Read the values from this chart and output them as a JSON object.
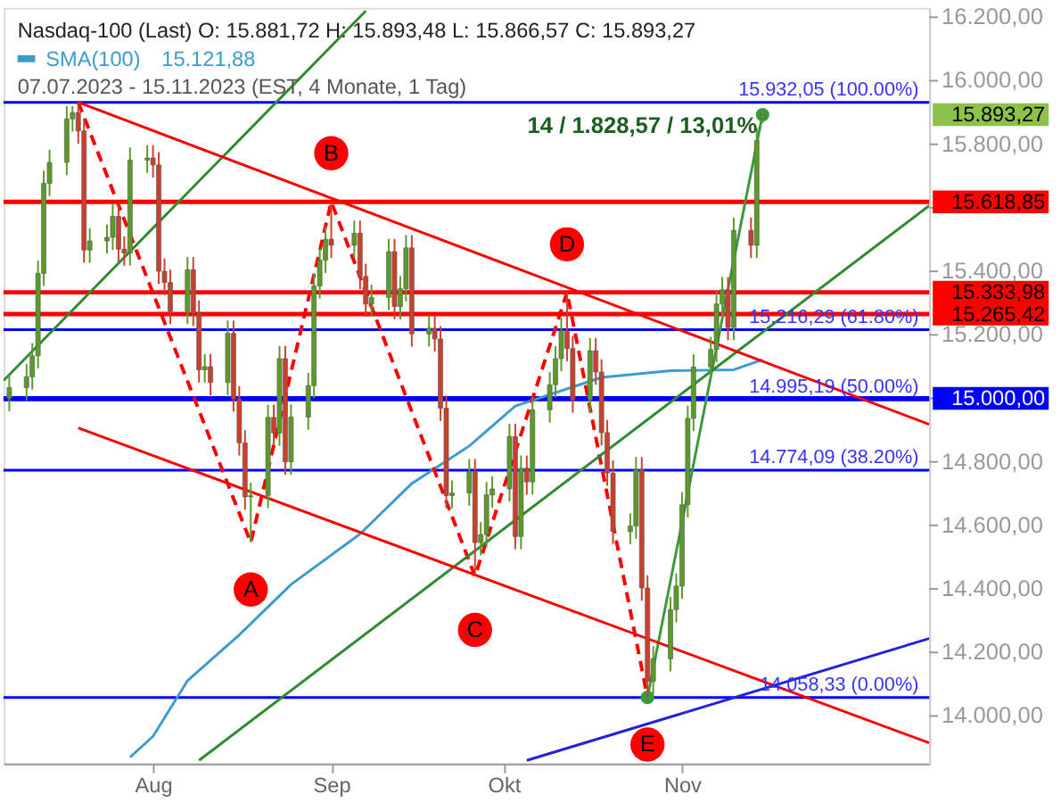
{
  "chart_data": {
    "type": "candlestick",
    "title": "Nasdaq-100 (Last)  O: 15.881,72  H: 15.893,48  L: 15.866,57  C: 15.893,27",
    "subtitle": "07.07.2023 - 15.11.2023  (EST, 4 Monate, 1 Tag)",
    "x": [
      "2023-07-07",
      "2023-07-10",
      "2023-07-11",
      "2023-07-12",
      "2023-07-13",
      "2023-07-14",
      "2023-07-17",
      "2023-07-18",
      "2023-07-19",
      "2023-07-20",
      "2023-07-21",
      "2023-07-24",
      "2023-07-25",
      "2023-07-26",
      "2023-07-27",
      "2023-07-28",
      "2023-07-31",
      "2023-08-01",
      "2023-08-02",
      "2023-08-03",
      "2023-08-04",
      "2023-08-07",
      "2023-08-08",
      "2023-08-09",
      "2023-08-10",
      "2023-08-11",
      "2023-08-14",
      "2023-08-15",
      "2023-08-16",
      "2023-08-17",
      "2023-08-18",
      "2023-08-21",
      "2023-08-22",
      "2023-08-23",
      "2023-08-24",
      "2023-08-25",
      "2023-08-28",
      "2023-08-29",
      "2023-08-30",
      "2023-08-31",
      "2023-09-01",
      "2023-09-05",
      "2023-09-06",
      "2023-09-07",
      "2023-09-08",
      "2023-09-11",
      "2023-09-12",
      "2023-09-13",
      "2023-09-14",
      "2023-09-15",
      "2023-09-18",
      "2023-09-19",
      "2023-09-20",
      "2023-09-21",
      "2023-09-22",
      "2023-09-25",
      "2023-09-26",
      "2023-09-27",
      "2023-09-28",
      "2023-09-29",
      "2023-10-02",
      "2023-10-03",
      "2023-10-04",
      "2023-10-05",
      "2023-10-06",
      "2023-10-09",
      "2023-10-10",
      "2023-10-11",
      "2023-10-12",
      "2023-10-13",
      "2023-10-16",
      "2023-10-17",
      "2023-10-18",
      "2023-10-19",
      "2023-10-20",
      "2023-10-23",
      "2023-10-24",
      "2023-10-25",
      "2023-10-26",
      "2023-10-27",
      "2023-10-30",
      "2023-10-31",
      "2023-11-01",
      "2023-11-02",
      "2023-11-03",
      "2023-11-06",
      "2023-11-07",
      "2023-11-08",
      "2023-11-09",
      "2023-11-10",
      "2023-11-13",
      "2023-11-14",
      "2023-11-15"
    ],
    "ohlc": [
      [
        15000,
        15074,
        14960,
        15034
      ],
      [
        15034,
        15108,
        14994,
        15068
      ],
      [
        15068,
        15174,
        15028,
        15134
      ],
      [
        15134,
        15434,
        15094,
        15394
      ],
      [
        15394,
        15717,
        15354,
        15677
      ],
      [
        15677,
        15783,
        15637,
        15743
      ],
      [
        15743,
        15920,
        15703,
        15880
      ],
      [
        15880,
        15920,
        15840,
        15900
      ],
      [
        15900,
        15932.05,
        15802,
        15842
      ],
      [
        15842,
        15882,
        15427,
        15467
      ],
      [
        15467,
        15536,
        15427,
        15496
      ],
      [
        15496,
        15547,
        15456,
        15507
      ],
      [
        15507,
        15613,
        15467,
        15573
      ],
      [
        15573,
        15613,
        15430,
        15470
      ],
      [
        15470,
        15510,
        15418,
        15458
      ],
      [
        15458,
        15790,
        15418,
        15750
      ],
      [
        15750,
        15797,
        15710,
        15757
      ],
      [
        15757,
        15797,
        15695,
        15735
      ],
      [
        15735,
        15775,
        15360,
        15400
      ],
      [
        15400,
        15440,
        15325,
        15365
      ],
      [
        15365,
        15405,
        15234,
        15274
      ],
      [
        15274,
        15445,
        15234,
        15405
      ],
      [
        15405,
        15445,
        15228,
        15268
      ],
      [
        15268,
        15308,
        15050,
        15090
      ],
      [
        15090,
        15140,
        15050,
        15100
      ],
      [
        15100,
        15140,
        15010,
        15050
      ],
      [
        15050,
        15245,
        15010,
        15205
      ],
      [
        15205,
        15245,
        14958,
        14998
      ],
      [
        14998,
        15038,
        14820,
        14860
      ],
      [
        14860,
        14900,
        14650,
        14690
      ],
      [
        14690,
        14734,
        14546,
        14694
      ],
      [
        14694,
        14980,
        14654,
        14940
      ],
      [
        14940,
        14980,
        14851,
        14891
      ],
      [
        14891,
        15165,
        14851,
        15125
      ],
      [
        15125,
        15165,
        14760,
        14800
      ],
      [
        14800,
        14981,
        14760,
        14941
      ],
      [
        14941,
        15080,
        14901,
        15040
      ],
      [
        15040,
        15394,
        15000,
        15354
      ],
      [
        15354,
        15475,
        15314,
        15435
      ],
      [
        15435,
        15541,
        15395,
        15501
      ],
      [
        15501,
        15618.85,
        15442,
        15482
      ],
      [
        15482,
        15560,
        15442,
        15520
      ],
      [
        15520,
        15560,
        15344,
        15384
      ],
      [
        15384,
        15424,
        15257,
        15297
      ],
      [
        15297,
        15358,
        15257,
        15318
      ],
      [
        15318,
        15502,
        15278,
        15462
      ],
      [
        15462,
        15502,
        15249,
        15289
      ],
      [
        15289,
        15385,
        15249,
        15345
      ],
      [
        15345,
        15514,
        15305,
        15474
      ],
      [
        15474,
        15514,
        15163,
        15203
      ],
      [
        15203,
        15261,
        15163,
        15221
      ],
      [
        15221,
        15261,
        15147,
        15187
      ],
      [
        15187,
        15227,
        14929,
        14969
      ],
      [
        14969,
        15009,
        14654,
        14694
      ],
      [
        14694,
        14742,
        14654,
        14702
      ],
      [
        14702,
        14809,
        14662,
        14769
      ],
      [
        14769,
        14809,
        14440,
        14546
      ],
      [
        14546,
        14611,
        14506,
        14571
      ],
      [
        14571,
        14736,
        14531,
        14696
      ],
      [
        14696,
        14755,
        14656,
        14715
      ],
      [
        14715,
        14920,
        14675,
        14880
      ],
      [
        14880,
        14920,
        14525,
        14565
      ],
      [
        14565,
        14820,
        14525,
        14780
      ],
      [
        14780,
        14820,
        14697,
        14737
      ],
      [
        14737,
        15004,
        14697,
        14964
      ],
      [
        14964,
        15083,
        14924,
        15043
      ],
      [
        15043,
        15165,
        15003,
        15125
      ],
      [
        15125,
        15254,
        15085,
        15214
      ],
      [
        15214,
        15333.98,
        15117,
        15157
      ],
      [
        15157,
        15197,
        14955,
        14995
      ],
      [
        14995,
        15190,
        14955,
        15150
      ],
      [
        15150,
        15190,
        15043,
        15083
      ],
      [
        15083,
        15123,
        14852,
        14892
      ],
      [
        14892,
        14932,
        14725,
        14765
      ],
      [
        14765,
        14805,
        14541,
        14581
      ],
      [
        14581,
        14638,
        14541,
        14598
      ],
      [
        14598,
        14815,
        14558,
        14775
      ],
      [
        14775,
        14815,
        14363,
        14403
      ],
      [
        14403,
        14443,
        14058.33,
        14109
      ],
      [
        14109,
        14220,
        14069,
        14180
      ],
      [
        14180,
        14375,
        14140,
        14335
      ],
      [
        14335,
        14449,
        14295,
        14409
      ],
      [
        14409,
        14705,
        14369,
        14665
      ],
      [
        14665,
        14977,
        14625,
        14937
      ],
      [
        14937,
        15139,
        14897,
        15099
      ],
      [
        15099,
        15194,
        15059,
        15154
      ],
      [
        15154,
        15337,
        15114,
        15297
      ],
      [
        15297,
        15382,
        15257,
        15342
      ],
      [
        15342,
        15382,
        15183,
        15223
      ],
      [
        15223,
        15569,
        15183,
        15529
      ],
      [
        15529,
        15569,
        15442,
        15482
      ],
      [
        15482,
        15852,
        15442,
        15812
      ],
      [
        15881.72,
        15893.48,
        15866.57,
        15893.27
      ]
    ],
    "series": [
      {
        "name": "SMA(100)",
        "type": "line",
        "color": "#3d9bd0",
        "x": [
          "2023-07-28",
          "2023-08-01",
          "2023-08-07",
          "2023-08-16",
          "2023-08-25",
          "2023-09-06",
          "2023-09-15",
          "2023-09-25",
          "2023-10-03",
          "2023-10-18",
          "2023-10-30",
          "2023-11-10",
          "2023-11-15"
        ],
        "values": [
          13870,
          13936,
          14111,
          14255,
          14414,
          14573,
          14732,
          14850,
          14976,
          15066,
          15087,
          15090,
          15122
        ]
      },
      {
        "type": "line",
        "color": "#ff0000",
        "line_style": "dashed",
        "x": [
          "2023-07-19",
          "2023-08-18",
          "2023-09-01",
          "2023-09-26",
          "2023-10-12",
          "2023-10-26"
        ],
        "values": [
          15932.05,
          14546,
          15618.85,
          14440,
          15333.98,
          14058.33
        ]
      },
      {
        "type": "line",
        "color": "#3c9a3c",
        "marker": "circle",
        "x": [
          "2023-10-26",
          "2023-11-15"
        ],
        "values": [
          14058.33,
          15893.27
        ]
      },
      {
        "type": "line",
        "color": "#2e8b2e",
        "x": [
          "2023-07-06",
          "2023-09-07"
        ],
        "values": [
          15056,
          16220
        ]
      },
      {
        "type": "line",
        "color": "#2e8b2e",
        "x": [
          "2023-08-09",
          "2023-12-14"
        ],
        "values": [
          13860,
          15607
        ]
      },
      {
        "type": "line",
        "color": "#ff0000",
        "x": [
          "2023-07-19",
          "2023-12-14"
        ],
        "values": [
          15932.05,
          14918
        ]
      },
      {
        "type": "line",
        "color": "#ff0000",
        "x": [
          "2023-07-19",
          "2023-12-14"
        ],
        "values": [
          14907,
          13915
        ]
      },
      {
        "type": "line",
        "color": "#2222dd",
        "x": [
          "2023-10-05",
          "2023-12-14"
        ],
        "values": [
          13860,
          14244
        ]
      }
    ],
    "xlim": [
      "2023-07-06",
      "2023-12-14"
    ],
    "xticks": [
      {
        "value": "2023-08-01",
        "label": "Aug"
      },
      {
        "value": "2023-09-01",
        "label": "Sep"
      },
      {
        "value": "2023-10-01",
        "label": "Okt"
      },
      {
        "value": "2023-11-01",
        "label": "Nov"
      }
    ],
    "ylim": [
      13850,
      16230
    ],
    "yticks": [
      {
        "value": 14000,
        "label": "14.000,00"
      },
      {
        "value": 14200,
        "label": "14.200,00"
      },
      {
        "value": 14400,
        "label": "14.400,00"
      },
      {
        "value": 14600,
        "label": "14.600,00"
      },
      {
        "value": 14800,
        "label": "14.800,00"
      },
      {
        "value": 15000,
        "label": null
      },
      {
        "value": 15200,
        "label": "15.200,00"
      },
      {
        "value": 15400,
        "label": "15.400,00"
      },
      {
        "value": 15600,
        "label": null
      },
      {
        "value": 15800,
        "label": "15.800,00"
      },
      {
        "value": 16000,
        "label": "16.000,00"
      },
      {
        "value": 16200,
        "label": "16.200,00"
      }
    ],
    "ref_lines": [
      {
        "axis": "y",
        "value": 15932.05,
        "label": "15.932,05 (100.00%)",
        "color": "#0000ff",
        "line_style": "solid"
      },
      {
        "axis": "y",
        "value": 15216.29,
        "label": "15.216,29 (61.80%)",
        "color": "#0000ff",
        "line_style": "solid"
      },
      {
        "axis": "y",
        "value": 14995.19,
        "label": "14.995,19 (50.00%)",
        "color": "#0000ff",
        "line_style": "solid"
      },
      {
        "axis": "y",
        "value": 14774.09,
        "label": "14.774,09 (38.20%)",
        "color": "#0000ff",
        "line_style": "solid"
      },
      {
        "axis": "y",
        "value": 14058.33,
        "label": "14.058,33 (0.00%)",
        "color": "#0000ff",
        "line_style": "solid"
      },
      {
        "axis": "y",
        "value": 15000,
        "label": "15.000,00",
        "color": "#0000ff"
      },
      {
        "axis": "y",
        "value": 15618.85,
        "label": "15.618,85",
        "color": "#ff0000"
      },
      {
        "axis": "y",
        "value": 15333.98,
        "label": "15.333,98",
        "color": "#ff0000"
      },
      {
        "axis": "y",
        "value": 15265.42,
        "label": "15.265,42",
        "color": "#ff0000"
      }
    ],
    "annotations": [
      "15.121,88",
      "14 / 1.828,57 / 13,01%",
      {
        "text": "A",
        "x": "2023-08-18",
        "y": 14398
      },
      {
        "text": "B",
        "x": "2023-09-01",
        "y": 15772
      },
      {
        "text": "C",
        "x": "2023-09-26",
        "y": 14271
      },
      {
        "text": "D",
        "x": "2023-10-12",
        "y": 15485
      },
      {
        "text": "E",
        "x": "2023-10-26",
        "y": 13910
      },
      "15.893,27"
    ],
    "legend": "top left",
    "grid": false
  }
}
